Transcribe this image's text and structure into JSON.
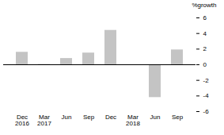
{
  "chart_data": {
    "type": "bar",
    "y_label": "%growth",
    "categories": [
      "Dec 2016",
      "Mar 2017",
      "Jun",
      "Sep",
      "Dec",
      "Mar 2018",
      "Jun",
      "Sep"
    ],
    "values": [
      1.6,
      0.05,
      0.8,
      1.5,
      4.4,
      -0.1,
      -4.2,
      1.9
    ],
    "color": "#c4c4c4",
    "ylim": [
      -6,
      6
    ],
    "yticks": [
      -6,
      -4,
      -2,
      0,
      2,
      4,
      6
    ],
    "grid": false
  }
}
